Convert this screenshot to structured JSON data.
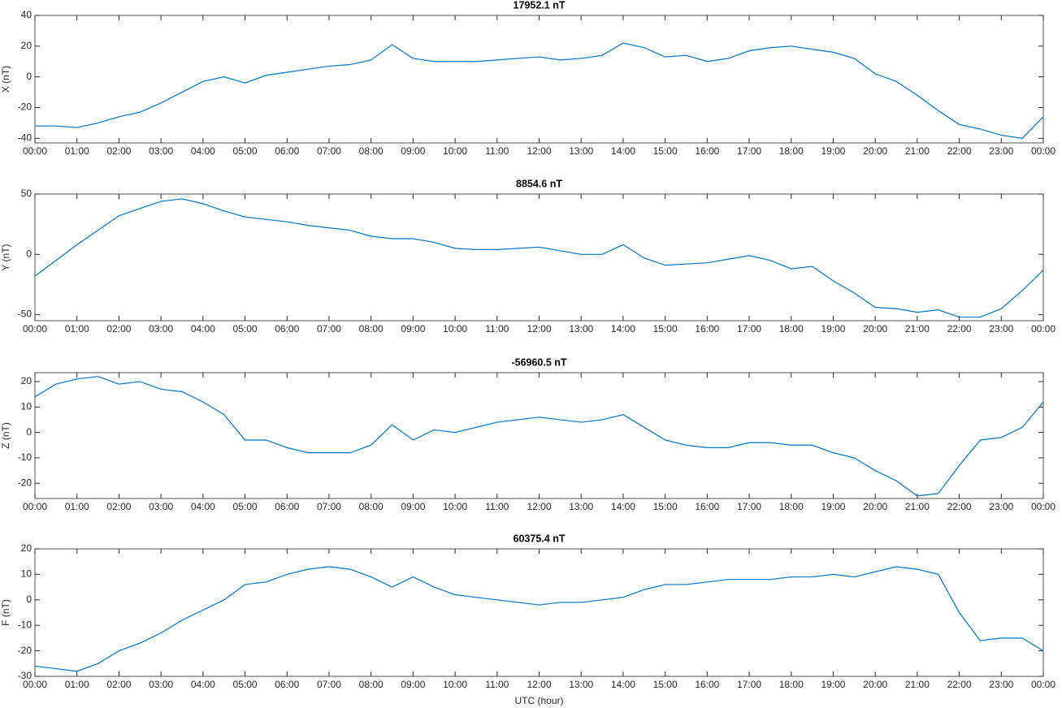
{
  "chart_data": [
    {
      "type": "line",
      "title": "17952.1 nT",
      "y_label": "X (nT)",
      "x": [
        0,
        0.5,
        1,
        1.5,
        2,
        2.5,
        3,
        3.5,
        4,
        4.5,
        5,
        5.5,
        6,
        6.5,
        7,
        7.5,
        8,
        8.5,
        9,
        9.5,
        10,
        10.5,
        11,
        11.5,
        12,
        12.5,
        13,
        13.5,
        14,
        14.5,
        15,
        15.5,
        16,
        16.5,
        17,
        17.5,
        18,
        18.5,
        19,
        19.5,
        20,
        20.5,
        21,
        21.5,
        22,
        22.5,
        23,
        23.5,
        24
      ],
      "series": [
        {
          "color": "#0072bd",
          "values": [
            -32,
            -32,
            -33,
            -30,
            -26,
            -23,
            -17,
            -10,
            -3,
            0,
            -4,
            1,
            3,
            5,
            7,
            8,
            11,
            21,
            12,
            10,
            10,
            10,
            11,
            12,
            13,
            11,
            12,
            14,
            22,
            19,
            13,
            14,
            10,
            12,
            17,
            19,
            20,
            18,
            16,
            12,
            2,
            -3,
            -12,
            -22,
            -31,
            -34,
            -38,
            -40,
            -26
          ]
        }
      ],
      "xlim": [
        0,
        24
      ],
      "xticks": [
        {
          "value": 0,
          "label": "00:00"
        },
        {
          "value": 1,
          "label": "01:00"
        },
        {
          "value": 2,
          "label": "02:00"
        },
        {
          "value": 3,
          "label": "03:00"
        },
        {
          "value": 4,
          "label": "04:00"
        },
        {
          "value": 5,
          "label": "05:00"
        },
        {
          "value": 6,
          "label": "06:00"
        },
        {
          "value": 7,
          "label": "07:00"
        },
        {
          "value": 8,
          "label": "08:00"
        },
        {
          "value": 9,
          "label": "09:00"
        },
        {
          "value": 10,
          "label": "10:00"
        },
        {
          "value": 11,
          "label": "11:00"
        },
        {
          "value": 12,
          "label": "12:00"
        },
        {
          "value": 13,
          "label": "13:00"
        },
        {
          "value": 14,
          "label": "14:00"
        },
        {
          "value": 15,
          "label": "15:00"
        },
        {
          "value": 16,
          "label": "16:00"
        },
        {
          "value": 17,
          "label": "17:00"
        },
        {
          "value": 18,
          "label": "18:00"
        },
        {
          "value": 19,
          "label": "19:00"
        },
        {
          "value": 20,
          "label": "20:00"
        },
        {
          "value": 21,
          "label": "21:00"
        },
        {
          "value": 22,
          "label": "22:00"
        },
        {
          "value": 23,
          "label": "23:00"
        },
        {
          "value": 24,
          "label": "00:00"
        }
      ],
      "ylim": [
        -43,
        40
      ],
      "yticks": [
        -40,
        -20,
        0,
        20,
        40
      ]
    },
    {
      "type": "line",
      "title": "8854.6 nT",
      "y_label": "Y (nT)",
      "x": [
        0,
        0.5,
        1,
        1.5,
        2,
        2.5,
        3,
        3.5,
        4,
        4.5,
        5,
        5.5,
        6,
        6.5,
        7,
        7.5,
        8,
        8.5,
        9,
        9.5,
        10,
        10.5,
        11,
        11.5,
        12,
        12.5,
        13,
        13.5,
        14,
        14.5,
        15,
        15.5,
        16,
        16.5,
        17,
        17.5,
        18,
        18.5,
        19,
        19.5,
        20,
        20.5,
        21,
        21.5,
        22,
        22.5,
        23,
        23.5,
        24
      ],
      "series": [
        {
          "color": "#0072bd",
          "values": [
            -18,
            -5,
            8,
            20,
            32,
            38,
            44,
            46,
            42,
            36,
            31,
            29,
            27,
            24,
            22,
            20,
            15,
            13,
            13,
            10,
            5,
            4,
            4,
            5,
            6,
            3,
            0,
            0,
            8,
            -3,
            -9,
            -8,
            -7,
            -4,
            -1,
            -5,
            -12,
            -10,
            -22,
            -32,
            -44,
            -45,
            -48,
            -46,
            -52,
            -52,
            -45,
            -30,
            -13
          ]
        }
      ],
      "xlim": [
        0,
        24
      ],
      "xticks": [
        {
          "value": 0,
          "label": "00:00"
        },
        {
          "value": 1,
          "label": "01:00"
        },
        {
          "value": 2,
          "label": "02:00"
        },
        {
          "value": 3,
          "label": "03:00"
        },
        {
          "value": 4,
          "label": "04:00"
        },
        {
          "value": 5,
          "label": "05:00"
        },
        {
          "value": 6,
          "label": "06:00"
        },
        {
          "value": 7,
          "label": "07:00"
        },
        {
          "value": 8,
          "label": "08:00"
        },
        {
          "value": 9,
          "label": "09:00"
        },
        {
          "value": 10,
          "label": "10:00"
        },
        {
          "value": 11,
          "label": "11:00"
        },
        {
          "value": 12,
          "label": "12:00"
        },
        {
          "value": 13,
          "label": "13:00"
        },
        {
          "value": 14,
          "label": "14:00"
        },
        {
          "value": 15,
          "label": "15:00"
        },
        {
          "value": 16,
          "label": "16:00"
        },
        {
          "value": 17,
          "label": "17:00"
        },
        {
          "value": 18,
          "label": "18:00"
        },
        {
          "value": 19,
          "label": "19:00"
        },
        {
          "value": 20,
          "label": "20:00"
        },
        {
          "value": 21,
          "label": "21:00"
        },
        {
          "value": 22,
          "label": "22:00"
        },
        {
          "value": 23,
          "label": "23:00"
        },
        {
          "value": 24,
          "label": "00:00"
        }
      ],
      "ylim": [
        -55,
        50
      ],
      "yticks": [
        -50,
        0,
        50
      ]
    },
    {
      "type": "line",
      "title": "-56960.5 nT",
      "y_label": "Z (nT)",
      "x": [
        0,
        0.5,
        1,
        1.5,
        2,
        2.5,
        3,
        3.5,
        4,
        4.5,
        5,
        5.5,
        6,
        6.5,
        7,
        7.5,
        8,
        8.5,
        9,
        9.5,
        10,
        10.5,
        11,
        11.5,
        12,
        12.5,
        13,
        13.5,
        14,
        14.5,
        15,
        15.5,
        16,
        16.5,
        17,
        17.5,
        18,
        18.5,
        19,
        19.5,
        20,
        20.5,
        21,
        21.5,
        22,
        22.5,
        23,
        23.5,
        24
      ],
      "series": [
        {
          "color": "#0072bd",
          "values": [
            14,
            19,
            21,
            22,
            19,
            20,
            17,
            16,
            12,
            7,
            -3,
            -3,
            -6,
            -8,
            -8,
            -8,
            -5,
            3,
            -3,
            1,
            0,
            2,
            4,
            5,
            6,
            5,
            4,
            5,
            7,
            2,
            -3,
            -5,
            -6,
            -6,
            -4,
            -4,
            -5,
            -5,
            -8,
            -10,
            -15,
            -19,
            -25,
            -24,
            -13,
            -3,
            -2,
            2,
            12
          ]
        }
      ],
      "xlim": [
        0,
        24
      ],
      "xticks": [
        {
          "value": 0,
          "label": "00:00"
        },
        {
          "value": 1,
          "label": "01:00"
        },
        {
          "value": 2,
          "label": "02:00"
        },
        {
          "value": 3,
          "label": "03:00"
        },
        {
          "value": 4,
          "label": "04:00"
        },
        {
          "value": 5,
          "label": "05:00"
        },
        {
          "value": 6,
          "label": "06:00"
        },
        {
          "value": 7,
          "label": "07:00"
        },
        {
          "value": 8,
          "label": "08:00"
        },
        {
          "value": 9,
          "label": "09:00"
        },
        {
          "value": 10,
          "label": "10:00"
        },
        {
          "value": 11,
          "label": "11:00"
        },
        {
          "value": 12,
          "label": "12:00"
        },
        {
          "value": 13,
          "label": "13:00"
        },
        {
          "value": 14,
          "label": "14:00"
        },
        {
          "value": 15,
          "label": "15:00"
        },
        {
          "value": 16,
          "label": "16:00"
        },
        {
          "value": 17,
          "label": "17:00"
        },
        {
          "value": 18,
          "label": "18:00"
        },
        {
          "value": 19,
          "label": "19:00"
        },
        {
          "value": 20,
          "label": "20:00"
        },
        {
          "value": 21,
          "label": "21:00"
        },
        {
          "value": 22,
          "label": "22:00"
        },
        {
          "value": 23,
          "label": "23:00"
        },
        {
          "value": 24,
          "label": "00:00"
        }
      ],
      "ylim": [
        -26,
        23.5
      ],
      "yticks": [
        -20,
        -10,
        0,
        10,
        20
      ]
    },
    {
      "type": "line",
      "title": "60375.4 nT",
      "y_label": "F (nT)",
      "x_label": "UTC (hour)",
      "x": [
        0,
        0.5,
        1,
        1.5,
        2,
        2.5,
        3,
        3.5,
        4,
        4.5,
        5,
        5.5,
        6,
        6.5,
        7,
        7.5,
        8,
        8.5,
        9,
        9.5,
        10,
        10.5,
        11,
        11.5,
        12,
        12.5,
        13,
        13.5,
        14,
        14.5,
        15,
        15.5,
        16,
        16.5,
        17,
        17.5,
        18,
        18.5,
        19,
        19.5,
        20,
        20.5,
        21,
        21.5,
        22,
        22.5,
        23,
        23.5,
        24
      ],
      "series": [
        {
          "color": "#0072bd",
          "values": [
            -26,
            -27,
            -28,
            -25,
            -20,
            -17,
            -13,
            -8,
            -4,
            0,
            6,
            7,
            10,
            12,
            13,
            12,
            9,
            5,
            9,
            5,
            2,
            1,
            0,
            -1,
            -2,
            -1,
            -1,
            0,
            1,
            4,
            6,
            6,
            7,
            8,
            8,
            8,
            9,
            9,
            10,
            9,
            11,
            13,
            12,
            10,
            -5,
            -16,
            -15,
            -15,
            -20
          ]
        }
      ],
      "xlim": [
        0,
        24
      ],
      "xticks": [
        {
          "value": 0,
          "label": "00:00"
        },
        {
          "value": 1,
          "label": "01:00"
        },
        {
          "value": 2,
          "label": "02:00"
        },
        {
          "value": 3,
          "label": "03:00"
        },
        {
          "value": 4,
          "label": "04:00"
        },
        {
          "value": 5,
          "label": "05:00"
        },
        {
          "value": 6,
          "label": "06:00"
        },
        {
          "value": 7,
          "label": "07:00"
        },
        {
          "value": 8,
          "label": "08:00"
        },
        {
          "value": 9,
          "label": "09:00"
        },
        {
          "value": 10,
          "label": "10:00"
        },
        {
          "value": 11,
          "label": "11:00"
        },
        {
          "value": 12,
          "label": "12:00"
        },
        {
          "value": 13,
          "label": "13:00"
        },
        {
          "value": 14,
          "label": "14:00"
        },
        {
          "value": 15,
          "label": "15:00"
        },
        {
          "value": 16,
          "label": "16:00"
        },
        {
          "value": 17,
          "label": "17:00"
        },
        {
          "value": 18,
          "label": "18:00"
        },
        {
          "value": 19,
          "label": "19:00"
        },
        {
          "value": 20,
          "label": "20:00"
        },
        {
          "value": 21,
          "label": "21:00"
        },
        {
          "value": 22,
          "label": "22:00"
        },
        {
          "value": 23,
          "label": "23:00"
        },
        {
          "value": 24,
          "label": "00:00"
        }
      ],
      "ylim": [
        -30,
        20
      ],
      "yticks": [
        -30,
        -20,
        -10,
        0,
        10,
        20
      ]
    }
  ]
}
